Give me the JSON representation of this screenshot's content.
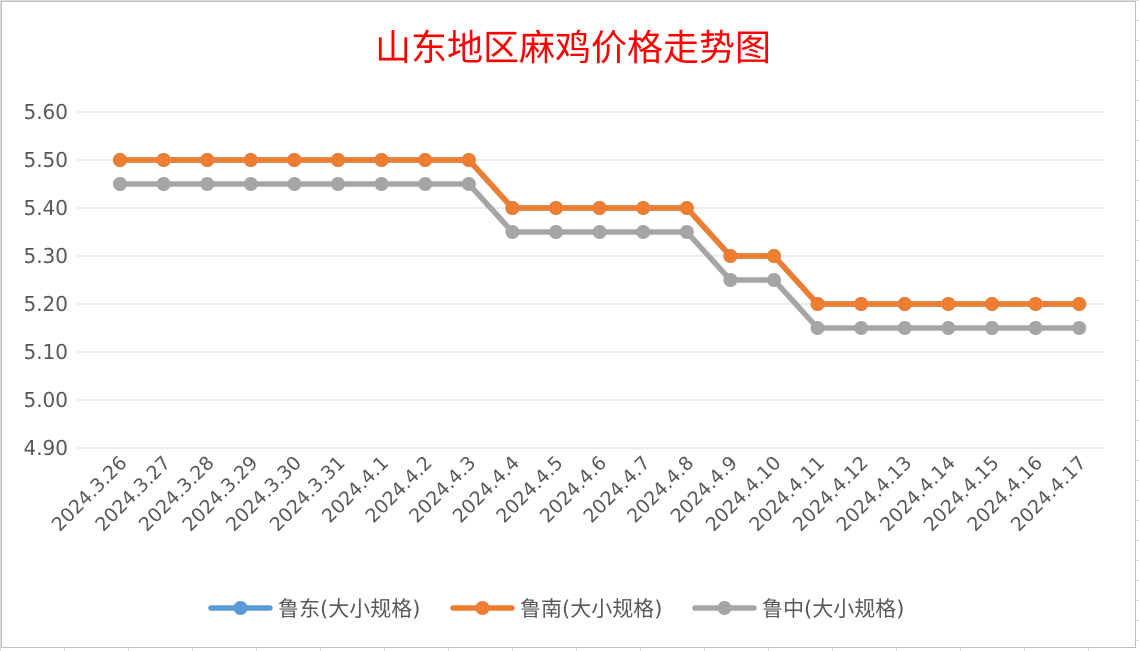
{
  "chart_data": {
    "type": "line",
    "title": "山东地区麻鸡价格走势图",
    "xlabel": "",
    "ylabel": "",
    "ylim": [
      4.9,
      5.6
    ],
    "yticks": [
      "5.60",
      "5.50",
      "5.40",
      "5.30",
      "5.20",
      "5.10",
      "5.00",
      "4.90"
    ],
    "categories": [
      "2024.3.26",
      "2024.3.27",
      "2024.3.28",
      "2024.3.29",
      "2024.3.30",
      "2024.3.31",
      "2024.4.1",
      "2024.4.2",
      "2024.4.3",
      "2024.4.4",
      "2024.4.5",
      "2024.4.6",
      "2024.4.7",
      "2024.4.8",
      "2024.4.9",
      "2024.4.10",
      "2024.4.11",
      "2024.4.12",
      "2024.4.13",
      "2024.4.14",
      "2024.4.15",
      "2024.4.16",
      "2024.4.17"
    ],
    "grid": true,
    "legend_position": "bottom",
    "series": [
      {
        "name": "鲁东(大小规格)",
        "color": "#5b9bd5",
        "values": [
          5.5,
          5.5,
          5.5,
          5.5,
          5.5,
          5.5,
          5.5,
          5.5,
          5.5,
          5.4,
          5.4,
          5.4,
          5.4,
          5.4,
          5.3,
          5.3,
          5.2,
          5.2,
          5.2,
          5.2,
          5.2,
          5.2,
          5.2
        ]
      },
      {
        "name": "鲁南(大小规格)",
        "color": "#ed7d31",
        "values": [
          5.5,
          5.5,
          5.5,
          5.5,
          5.5,
          5.5,
          5.5,
          5.5,
          5.5,
          5.4,
          5.4,
          5.4,
          5.4,
          5.4,
          5.3,
          5.3,
          5.2,
          5.2,
          5.2,
          5.2,
          5.2,
          5.2,
          5.2
        ]
      },
      {
        "name": "鲁中(大小规格)",
        "color": "#a5a5a5",
        "values": [
          5.45,
          5.45,
          5.45,
          5.45,
          5.45,
          5.45,
          5.45,
          5.45,
          5.45,
          5.35,
          5.35,
          5.35,
          5.35,
          5.35,
          5.25,
          5.25,
          5.15,
          5.15,
          5.15,
          5.15,
          5.15,
          5.15,
          5.15
        ]
      }
    ]
  }
}
